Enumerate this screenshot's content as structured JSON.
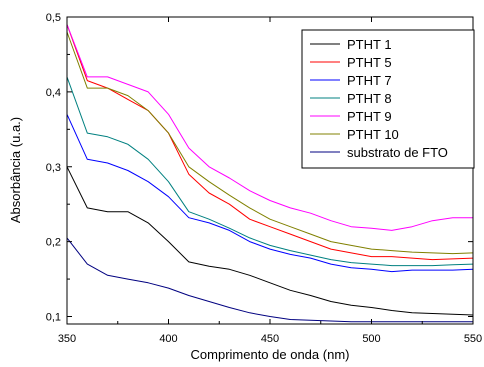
{
  "chart_data": {
    "type": "line",
    "xlabel": "Comprimento de onda (nm)",
    "ylabel": "Absorbância (u.a.)",
    "xlim": [
      350,
      550
    ],
    "ylim": [
      0.09,
      0.5
    ],
    "x_ticks": [
      350,
      400,
      450,
      500,
      550
    ],
    "y_ticks": [
      0.1,
      0.2,
      0.3,
      0.4,
      0.5
    ],
    "y_tick_labels": [
      "0,1",
      "0,2",
      "0,3",
      "0,4",
      "0,5"
    ],
    "legend_position": "top-right",
    "grid": false,
    "x": [
      350,
      360,
      370,
      380,
      390,
      400,
      410,
      420,
      430,
      440,
      450,
      460,
      470,
      480,
      490,
      500,
      510,
      520,
      530,
      540,
      550
    ],
    "series": [
      {
        "name": "PTHT 1",
        "color": "#000000",
        "values": [
          0.3,
          0.245,
          0.24,
          0.24,
          0.225,
          0.2,
          0.173,
          0.167,
          0.163,
          0.155,
          0.145,
          0.135,
          0.128,
          0.12,
          0.115,
          0.112,
          0.108,
          0.105,
          0.104,
          0.103,
          0.102
        ]
      },
      {
        "name": "PTHT 5",
        "color": "#ff0000",
        "values": [
          0.49,
          0.415,
          0.405,
          0.39,
          0.375,
          0.345,
          0.29,
          0.265,
          0.25,
          0.23,
          0.22,
          0.21,
          0.2,
          0.19,
          0.185,
          0.18,
          0.18,
          0.178,
          0.176,
          0.177,
          0.178
        ]
      },
      {
        "name": "PTHT 7",
        "color": "#0000ff",
        "values": [
          0.37,
          0.31,
          0.305,
          0.295,
          0.28,
          0.26,
          0.232,
          0.225,
          0.215,
          0.2,
          0.19,
          0.183,
          0.178,
          0.17,
          0.165,
          0.163,
          0.16,
          0.162,
          0.162,
          0.162,
          0.163
        ]
      },
      {
        "name": "PTHT 8",
        "color": "#008080",
        "values": [
          0.42,
          0.345,
          0.34,
          0.33,
          0.31,
          0.28,
          0.24,
          0.23,
          0.218,
          0.205,
          0.195,
          0.188,
          0.182,
          0.176,
          0.172,
          0.17,
          0.168,
          0.168,
          0.168,
          0.169,
          0.17
        ]
      },
      {
        "name": "PTHT 9",
        "color": "#ff00ff",
        "values": [
          0.49,
          0.42,
          0.42,
          0.41,
          0.4,
          0.37,
          0.325,
          0.3,
          0.285,
          0.268,
          0.255,
          0.245,
          0.238,
          0.228,
          0.22,
          0.218,
          0.215,
          0.22,
          0.228,
          0.232,
          0.232
        ]
      },
      {
        "name": "PTHT 10",
        "color": "#808000",
        "values": [
          0.48,
          0.405,
          0.405,
          0.395,
          0.375,
          0.345,
          0.3,
          0.28,
          0.262,
          0.245,
          0.23,
          0.22,
          0.21,
          0.2,
          0.195,
          0.19,
          0.188,
          0.186,
          0.185,
          0.184,
          0.185
        ]
      },
      {
        "name": "substrato de FTO",
        "color": "#000080",
        "values": [
          0.205,
          0.17,
          0.155,
          0.15,
          0.145,
          0.138,
          0.128,
          0.12,
          0.112,
          0.105,
          0.1,
          0.096,
          0.095,
          0.094,
          0.093,
          0.093,
          0.093,
          0.093,
          0.093,
          0.093,
          0.093
        ]
      }
    ]
  }
}
